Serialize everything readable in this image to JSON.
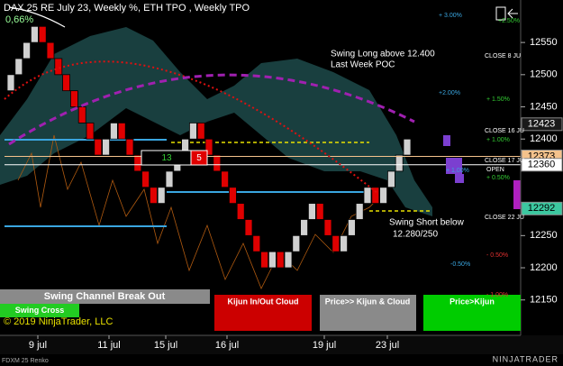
{
  "header": {
    "title": "DAX 25 RE July 23, Weekly %, ETH TPO , Weekly TPO",
    "change": "0,66%"
  },
  "chart_data": {
    "type": "renko",
    "values": [
      12500,
      12525,
      12550,
      12575,
      12550,
      12525,
      12500,
      12475,
      12450,
      12425,
      12400,
      12375,
      12400,
      12425,
      12400,
      12375,
      12350,
      12325,
      12300,
      12325,
      12350,
      12375,
      12400,
      12425,
      12400,
      12375,
      12350,
      12325,
      12300,
      12275,
      12250,
      12225,
      12200,
      12225,
      12200,
      12225,
      12250,
      12275,
      12300,
      12275,
      12250,
      12225,
      12250,
      12275,
      12300,
      12325,
      12300,
      12325,
      12350,
      12375,
      12400
    ],
    "up_color": "#d0d0d0",
    "down_color": "#e00000",
    "ylim": [
      12095,
      12616
    ],
    "yticks": [
      12150,
      12200,
      12250,
      12400,
      12450,
      12500,
      12550
    ],
    "x_labels": [
      "9 jul",
      "11 jul",
      "15 jul",
      "16 jul",
      "19 jul",
      "23 jul"
    ],
    "price_markers": [
      12423,
      12373,
      12360,
      12292
    ],
    "price_marker_colors": [
      "#1a1a1a",
      "#f4c28c",
      "#ffffff",
      "#3cc8a0"
    ],
    "annotations": [
      "Swing Long above 12.400",
      "Last Week POC",
      "Swing Short below",
      "12.280/250"
    ],
    "percent_levels": [
      "+ 3.00%",
      "+2.50%",
      "+2.00%",
      "+ 1.50%",
      "+ 1.00%",
      "+ 1,00%",
      "+ 0.50%",
      "-0.50%",
      "- 0.50%",
      "- 1.00%"
    ],
    "session_labels": [
      "CLOSE 8 JU",
      "CLOSE 16 JU",
      "CLOSE 17 JU",
      "OPEN",
      "CLOSE 22 JU"
    ],
    "counters": [
      13,
      5
    ]
  },
  "panels": {
    "swing_channel": "Swing Channel Break Out",
    "swing_cross": "Swing Cross",
    "copyright": "© 2019 NinjaTrader, LLC",
    "kijun_cloud": "Kijun In/Out Cloud",
    "price_kijun_cloud": "Price>> Kijun & Cloud",
    "price_kijun": "Price>Kijun"
  },
  "footer": {
    "instrument": "FDXM 25 Renko",
    "brand": "NINJATRADER"
  }
}
